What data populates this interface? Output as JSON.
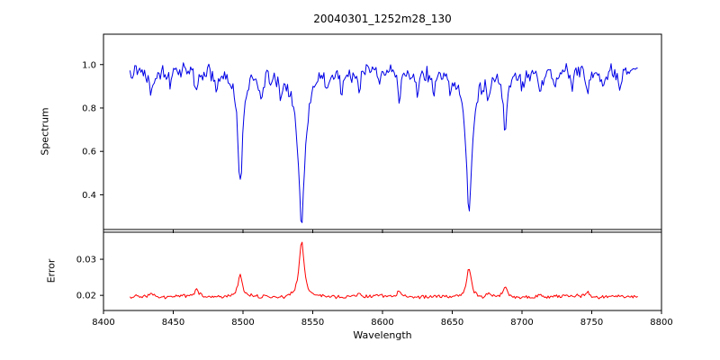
{
  "title": "20040301_1252m28_130",
  "xlabel": "Wavelength",
  "seed": 13,
  "x_axis": {
    "xlim": [
      8400,
      8800
    ],
    "xticks": [
      8400,
      8450,
      8500,
      8550,
      8600,
      8650,
      8700,
      8750,
      8800
    ],
    "xtick_labels": [
      "8400",
      "8450",
      "8500",
      "8550",
      "8600",
      "8650",
      "8700",
      "8750",
      "8800"
    ]
  },
  "chart_data": [
    {
      "type": "line",
      "name": "spectrum",
      "ylabel": "Spectrum",
      "color": "#0000e6",
      "ylim": [
        0.24,
        1.14
      ],
      "yticks": [
        0.4,
        0.6,
        0.8,
        1.0
      ],
      "ytick_labels": [
        "0.4",
        "0.6",
        "0.8",
        "1.0"
      ],
      "x_start": 8419,
      "x_end": 8783,
      "n_points": 420,
      "baseline": 0.97,
      "noise_amp": 0.03,
      "smooth_amp": 0.012,
      "feature_sign": -1,
      "features_note": "absorption lines [center_wavelength, depth, half_width]; Ca II triplet at 8498/8542/8662",
      "features": [
        [
          8498,
          0.5,
          2.2
        ],
        [
          8542,
          0.67,
          3.0
        ],
        [
          8662,
          0.63,
          2.5
        ],
        [
          8688,
          0.26,
          1.8
        ],
        [
          8434,
          0.1,
          1.4
        ],
        [
          8448,
          0.08,
          1.2
        ],
        [
          8467,
          0.12,
          1.5
        ],
        [
          8481,
          0.09,
          1.3
        ],
        [
          8513,
          0.1,
          1.4
        ],
        [
          8527,
          0.08,
          1.2
        ],
        [
          8560,
          0.07,
          1.2
        ],
        [
          8571,
          0.08,
          1.2
        ],
        [
          8583,
          0.09,
          1.3
        ],
        [
          8598,
          0.07,
          1.2
        ],
        [
          8612,
          0.13,
          1.5
        ],
        [
          8625,
          0.08,
          1.2
        ],
        [
          8637,
          0.1,
          1.3
        ],
        [
          8649,
          0.09,
          1.3
        ],
        [
          8676,
          0.1,
          1.3
        ],
        [
          8700,
          0.08,
          1.2
        ],
        [
          8713,
          0.1,
          1.3
        ],
        [
          8724,
          0.08,
          1.2
        ],
        [
          8736,
          0.09,
          1.3
        ],
        [
          8747,
          0.12,
          1.4
        ],
        [
          8758,
          0.08,
          1.2
        ],
        [
          8770,
          0.1,
          1.3
        ]
      ]
    },
    {
      "type": "line",
      "name": "error",
      "ylabel": "Error",
      "color": "#ff0000",
      "ylim": [
        0.0158,
        0.0375
      ],
      "yticks": [
        0.02,
        0.03
      ],
      "ytick_labels": [
        "0.02",
        "0.03"
      ],
      "x_start": 8419,
      "x_end": 8783,
      "n_points": 420,
      "baseline": 0.0195,
      "noise_amp": 0.0004,
      "smooth_amp": 0.0002,
      "feature_sign": 1,
      "features_note": "error peaks [center_wavelength, amplitude, half_width] at the same absorption lines",
      "features": [
        [
          8498,
          0.0062,
          2.0
        ],
        [
          8542,
          0.0155,
          2.2
        ],
        [
          8662,
          0.0085,
          2.0
        ],
        [
          8688,
          0.003,
          1.6
        ],
        [
          8434,
          0.0012,
          1.3
        ],
        [
          8467,
          0.0018,
          1.5
        ],
        [
          8583,
          0.0012,
          1.3
        ],
        [
          8612,
          0.0016,
          1.4
        ],
        [
          8676,
          0.0012,
          1.3
        ],
        [
          8713,
          0.0012,
          1.3
        ],
        [
          8747,
          0.0015,
          1.4
        ]
      ]
    }
  ]
}
